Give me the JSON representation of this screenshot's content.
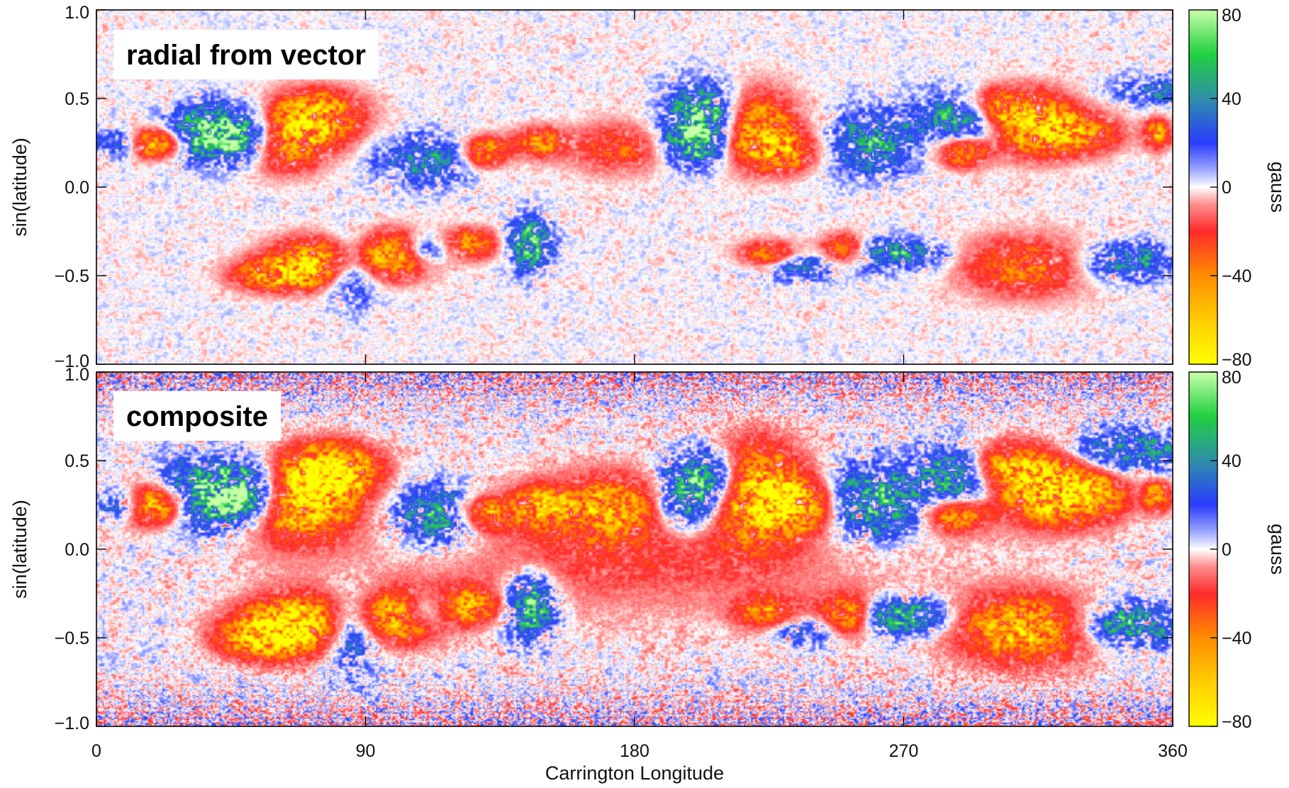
{
  "chart_data": [
    {
      "type": "heatmap",
      "panel_label": "radial from vector",
      "xlabel": "",
      "ylabel": "sin(latitude)",
      "xlim": [
        0,
        360
      ],
      "ylim": [
        -1.0,
        1.0
      ],
      "x_ticks": [
        0,
        90,
        180,
        270,
        360
      ],
      "y_ticks": [
        1.0,
        0.5,
        0.0,
        -0.5,
        -1.0
      ],
      "y_tick_labels": [
        "1.0",
        "0.5",
        "0.0",
        "−0.5",
        "−1.0"
      ],
      "colorbar": {
        "label": "gauss",
        "range": [
          -80,
          80
        ],
        "ticks": [
          80,
          40,
          0,
          -40,
          -80
        ],
        "tick_labels": [
          "80",
          "40",
          "0",
          "−40",
          "−80"
        ]
      },
      "regions": [
        {
          "lon": 20,
          "lat": 0.25,
          "sign": -1,
          "strength": 0.9,
          "sx": 8,
          "sy": 0.06
        },
        {
          "lon": 35,
          "lat": 0.3,
          "sign": 1,
          "strength": 0.8,
          "sx": 9,
          "sy": 0.1
        },
        {
          "lon": 50,
          "lat": 0.3,
          "sign": 1,
          "strength": 1.0,
          "sx": 9,
          "sy": 0.1
        },
        {
          "lon": 62,
          "lat": 0.28,
          "sign": -1,
          "strength": 0.9,
          "sx": 10,
          "sy": 0.12
        },
        {
          "lon": 75,
          "lat": 0.4,
          "sign": -1,
          "strength": 0.8,
          "sx": 10,
          "sy": 0.1
        },
        {
          "lon": 8,
          "lat": 0.25,
          "sign": 1,
          "strength": 0.6,
          "sx": 5,
          "sy": 0.06
        },
        {
          "lon": 110,
          "lat": 0.15,
          "sign": 1,
          "strength": 0.5,
          "sx": 10,
          "sy": 0.1
        },
        {
          "lon": 130,
          "lat": 0.2,
          "sign": -1,
          "strength": 0.7,
          "sx": 5,
          "sy": 0.06
        },
        {
          "lon": 148,
          "lat": 0.25,
          "sign": -1,
          "strength": 0.6,
          "sx": 6,
          "sy": 0.06
        },
        {
          "lon": 175,
          "lat": 0.22,
          "sign": -1,
          "strength": 0.4,
          "sx": 12,
          "sy": 0.1
        },
        {
          "lon": 205,
          "lat": 0.4,
          "sign": 1,
          "strength": 1.0,
          "sx": 9,
          "sy": 0.12
        },
        {
          "lon": 200,
          "lat": 0.25,
          "sign": 1,
          "strength": 0.7,
          "sx": 7,
          "sy": 0.1
        },
        {
          "lon": 218,
          "lat": 0.35,
          "sign": -1,
          "strength": 0.9,
          "sx": 10,
          "sy": 0.14
        },
        {
          "lon": 230,
          "lat": 0.2,
          "sign": -1,
          "strength": 0.6,
          "sx": 8,
          "sy": 0.08
        },
        {
          "lon": 260,
          "lat": 0.25,
          "sign": 1,
          "strength": 0.6,
          "sx": 10,
          "sy": 0.12
        },
        {
          "lon": 290,
          "lat": 0.4,
          "sign": 1,
          "strength": 0.8,
          "sx": 9,
          "sy": 0.1
        },
        {
          "lon": 300,
          "lat": 0.45,
          "sign": -1,
          "strength": 0.7,
          "sx": 9,
          "sy": 0.08
        },
        {
          "lon": 315,
          "lat": 0.35,
          "sign": -1,
          "strength": 0.8,
          "sx": 10,
          "sy": 0.12
        },
        {
          "lon": 330,
          "lat": 0.3,
          "sign": -1,
          "strength": 0.5,
          "sx": 10,
          "sy": 0.08
        },
        {
          "lon": 290,
          "lat": 0.2,
          "sign": -1,
          "strength": 0.7,
          "sx": 6,
          "sy": 0.06
        },
        {
          "lon": 355,
          "lat": 0.3,
          "sign": -1,
          "strength": 0.7,
          "sx": 3,
          "sy": 0.06
        },
        {
          "lon": 355,
          "lat": 0.55,
          "sign": 1,
          "strength": 0.4,
          "sx": 10,
          "sy": 0.06
        },
        {
          "lon": 75,
          "lat": -0.42,
          "sign": -1,
          "strength": 0.9,
          "sx": 12,
          "sy": 0.09
        },
        {
          "lon": 60,
          "lat": -0.5,
          "sign": -1,
          "strength": 0.7,
          "sx": 10,
          "sy": 0.06
        },
        {
          "lon": 85,
          "lat": -0.45,
          "sign": 1,
          "strength": 0.7,
          "sx": 6,
          "sy": 0.12
        },
        {
          "lon": 100,
          "lat": -0.38,
          "sign": -1,
          "strength": 0.8,
          "sx": 9,
          "sy": 0.09
        },
        {
          "lon": 110,
          "lat": -0.35,
          "sign": 1,
          "strength": 0.6,
          "sx": 6,
          "sy": 0.06
        },
        {
          "lon": 125,
          "lat": -0.32,
          "sign": -1,
          "strength": 0.6,
          "sx": 7,
          "sy": 0.06
        },
        {
          "lon": 145,
          "lat": -0.32,
          "sign": 1,
          "strength": 0.8,
          "sx": 5,
          "sy": 0.1
        },
        {
          "lon": 225,
          "lat": -0.4,
          "sign": -1,
          "strength": 0.7,
          "sx": 7,
          "sy": 0.06
        },
        {
          "lon": 232,
          "lat": -0.45,
          "sign": 1,
          "strength": 0.6,
          "sx": 10,
          "sy": 0.05
        },
        {
          "lon": 250,
          "lat": -0.35,
          "sign": -1,
          "strength": 0.6,
          "sx": 5,
          "sy": 0.06
        },
        {
          "lon": 262,
          "lat": -0.38,
          "sign": 1,
          "strength": 0.5,
          "sx": 6,
          "sy": 0.06
        },
        {
          "lon": 275,
          "lat": -0.38,
          "sign": 1,
          "strength": 0.5,
          "sx": 7,
          "sy": 0.06
        },
        {
          "lon": 310,
          "lat": -0.45,
          "sign": -1,
          "strength": 0.5,
          "sx": 15,
          "sy": 0.12
        },
        {
          "lon": 345,
          "lat": -0.42,
          "sign": 1,
          "strength": 0.6,
          "sx": 10,
          "sy": 0.07
        }
      ]
    },
    {
      "type": "heatmap",
      "panel_label": "composite",
      "xlabel": "Carrington Longitude",
      "ylabel": "sin(latitude)",
      "xlim": [
        0,
        360
      ],
      "ylim": [
        -1.0,
        1.0
      ],
      "x_ticks": [
        0,
        90,
        180,
        270,
        360
      ],
      "y_ticks": [
        1.0,
        0.5,
        0.0,
        -0.5,
        -1.0
      ],
      "y_tick_labels": [
        "1.0",
        "0.5",
        "0.0",
        "−0.5",
        "−1.0"
      ],
      "colorbar": {
        "label": "gauss",
        "range": [
          -80,
          80
        ],
        "ticks": [
          80,
          40,
          0,
          -40,
          -80
        ],
        "tick_labels": [
          "80",
          "40",
          "0",
          "−40",
          "−80"
        ]
      },
      "regions": [
        {
          "lon": 20,
          "lat": 0.25,
          "sign": -1,
          "strength": 1.0,
          "sx": 9,
          "sy": 0.08
        },
        {
          "lon": 35,
          "lat": 0.3,
          "sign": 1,
          "strength": 0.9,
          "sx": 10,
          "sy": 0.12
        },
        {
          "lon": 50,
          "lat": 0.32,
          "sign": 1,
          "strength": 1.0,
          "sx": 9,
          "sy": 0.12
        },
        {
          "lon": 68,
          "lat": 0.28,
          "sign": -1,
          "strength": 1.0,
          "sx": 13,
          "sy": 0.16
        },
        {
          "lon": 80,
          "lat": 0.45,
          "sign": -1,
          "strength": 0.9,
          "sx": 10,
          "sy": 0.1
        },
        {
          "lon": 8,
          "lat": 0.25,
          "sign": 1,
          "strength": 0.7,
          "sx": 5,
          "sy": 0.06
        },
        {
          "lon": 115,
          "lat": 0.18,
          "sign": 1,
          "strength": 0.7,
          "sx": 12,
          "sy": 0.12
        },
        {
          "lon": 130,
          "lat": 0.2,
          "sign": -1,
          "strength": 0.8,
          "sx": 6,
          "sy": 0.07
        },
        {
          "lon": 148,
          "lat": 0.25,
          "sign": -1,
          "strength": 0.7,
          "sx": 7,
          "sy": 0.07
        },
        {
          "lon": 172,
          "lat": 0.25,
          "sign": -1,
          "strength": 0.6,
          "sx": 14,
          "sy": 0.12
        },
        {
          "lon": 205,
          "lat": 0.4,
          "sign": 1,
          "strength": 1.0,
          "sx": 9,
          "sy": 0.12
        },
        {
          "lon": 198,
          "lat": 0.25,
          "sign": 1,
          "strength": 0.8,
          "sx": 8,
          "sy": 0.12
        },
        {
          "lon": 218,
          "lat": 0.35,
          "sign": -1,
          "strength": 1.0,
          "sx": 12,
          "sy": 0.18
        },
        {
          "lon": 235,
          "lat": 0.25,
          "sign": -1,
          "strength": 0.8,
          "sx": 10,
          "sy": 0.1
        },
        {
          "lon": 258,
          "lat": 0.25,
          "sign": 1,
          "strength": 0.8,
          "sx": 12,
          "sy": 0.14
        },
        {
          "lon": 290,
          "lat": 0.4,
          "sign": 1,
          "strength": 0.9,
          "sx": 10,
          "sy": 0.12
        },
        {
          "lon": 302,
          "lat": 0.45,
          "sign": -1,
          "strength": 0.8,
          "sx": 10,
          "sy": 0.1
        },
        {
          "lon": 318,
          "lat": 0.35,
          "sign": -1,
          "strength": 0.9,
          "sx": 12,
          "sy": 0.14
        },
        {
          "lon": 332,
          "lat": 0.3,
          "sign": -1,
          "strength": 0.6,
          "sx": 10,
          "sy": 0.1
        },
        {
          "lon": 288,
          "lat": 0.2,
          "sign": -1,
          "strength": 0.8,
          "sx": 7,
          "sy": 0.07
        },
        {
          "lon": 355,
          "lat": 0.3,
          "sign": -1,
          "strength": 0.8,
          "sx": 3,
          "sy": 0.06
        },
        {
          "lon": 345,
          "lat": 0.55,
          "sign": 1,
          "strength": 0.6,
          "sx": 14,
          "sy": 0.08
        },
        {
          "lon": 70,
          "lat": -0.42,
          "sign": -1,
          "strength": 1.0,
          "sx": 14,
          "sy": 0.12
        },
        {
          "lon": 55,
          "lat": -0.5,
          "sign": -1,
          "strength": 0.8,
          "sx": 10,
          "sy": 0.08
        },
        {
          "lon": 85,
          "lat": -0.45,
          "sign": 1,
          "strength": 0.8,
          "sx": 7,
          "sy": 0.14
        },
        {
          "lon": 102,
          "lat": -0.38,
          "sign": -1,
          "strength": 0.9,
          "sx": 10,
          "sy": 0.1
        },
        {
          "lon": 110,
          "lat": -0.35,
          "sign": 1,
          "strength": 0.7,
          "sx": 6,
          "sy": 0.07
        },
        {
          "lon": 125,
          "lat": -0.32,
          "sign": -1,
          "strength": 0.7,
          "sx": 8,
          "sy": 0.07
        },
        {
          "lon": 145,
          "lat": -0.32,
          "sign": 1,
          "strength": 0.9,
          "sx": 6,
          "sy": 0.12
        },
        {
          "lon": 225,
          "lat": -0.4,
          "sign": -1,
          "strength": 0.8,
          "sx": 8,
          "sy": 0.08
        },
        {
          "lon": 232,
          "lat": -0.45,
          "sign": 1,
          "strength": 0.7,
          "sx": 11,
          "sy": 0.06
        },
        {
          "lon": 252,
          "lat": -0.38,
          "sign": -1,
          "strength": 0.8,
          "sx": 7,
          "sy": 0.08
        },
        {
          "lon": 262,
          "lat": -0.38,
          "sign": 1,
          "strength": 0.6,
          "sx": 6,
          "sy": 0.07
        },
        {
          "lon": 275,
          "lat": -0.38,
          "sign": 1,
          "strength": 0.6,
          "sx": 8,
          "sy": 0.07
        },
        {
          "lon": 310,
          "lat": -0.45,
          "sign": -1,
          "strength": 0.8,
          "sx": 16,
          "sy": 0.14
        },
        {
          "lon": 345,
          "lat": -0.42,
          "sign": 1,
          "strength": 0.7,
          "sx": 11,
          "sy": 0.08
        },
        {
          "lon": 180,
          "lat": 0.0,
          "sign": -1,
          "strength": 0.3,
          "sx": 60,
          "sy": 0.25
        }
      ]
    }
  ],
  "colormap": {
    "stops": [
      {
        "v": -80,
        "color": "#ffff00"
      },
      {
        "v": -60,
        "color": "#ffcc00"
      },
      {
        "v": -40,
        "color": "#ff8c00"
      },
      {
        "v": -20,
        "color": "#ff2a2a"
      },
      {
        "v": -8,
        "color": "#ff8c8c"
      },
      {
        "v": 0,
        "color": "#ffffff"
      },
      {
        "v": 8,
        "color": "#9aa4ff"
      },
      {
        "v": 20,
        "color": "#2a3cff"
      },
      {
        "v": 40,
        "color": "#2e8fa8"
      },
      {
        "v": 60,
        "color": "#20d040"
      },
      {
        "v": 80,
        "color": "#c8ffa8"
      }
    ]
  }
}
